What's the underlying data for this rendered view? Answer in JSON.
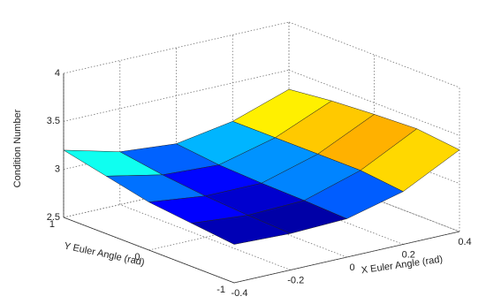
{
  "chart_data": {
    "type": "surface3d",
    "xlabel": "X Euler Angle (rad)",
    "ylabel": "Y Euler Angle (rad)",
    "zlabel": "Condition Number",
    "x": [
      -0.4,
      -0.2,
      0,
      0.2,
      0.4
    ],
    "y": [
      1,
      0.5,
      0,
      -0.5,
      -1
    ],
    "z": [
      [
        3.2,
        3.05,
        3.0,
        3.1,
        3.3
      ],
      [
        3.1,
        2.98,
        2.95,
        3.1,
        3.35
      ],
      [
        3.0,
        2.93,
        2.93,
        3.1,
        3.38
      ],
      [
        2.95,
        2.9,
        2.92,
        3.1,
        3.4
      ],
      [
        2.9,
        2.88,
        2.9,
        3.05,
        3.35
      ]
    ],
    "xlim": [
      -0.4,
      0.4
    ],
    "xticks": [
      -0.4,
      -0.2,
      0,
      0.2,
      0.4
    ],
    "ylim": [
      -1,
      1
    ],
    "yticks": [
      -1,
      0,
      1
    ],
    "zlim": [
      2.5,
      4
    ],
    "zticks": [
      2.5,
      3,
      3.5,
      4
    ],
    "colormap": "jet",
    "grid": true
  }
}
